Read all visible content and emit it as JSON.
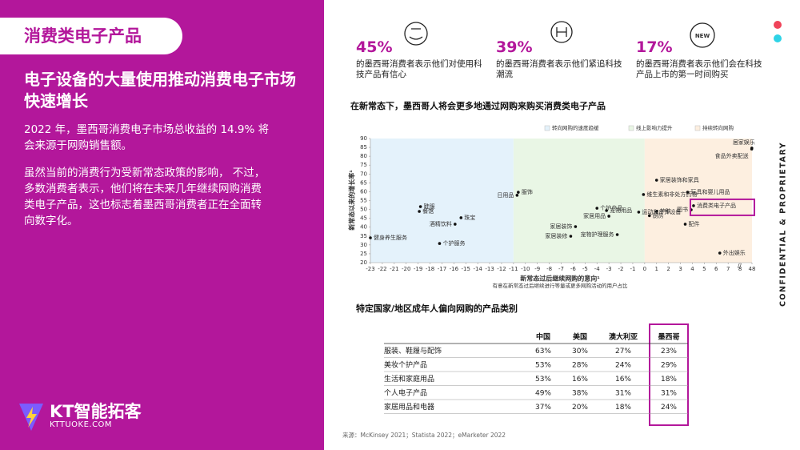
{
  "left": {
    "tag": "消费类电子产品",
    "heading": "电子设备的大量使用推动消费电子市场快速增长",
    "paragraphs": [
      "2022 年，墨西哥消费电子市场总收益的 14.9% 将会来源于网购销售额。",
      "虽然当前的消费行为受新常态政策的影响， 不过，多数消费者表示，他们将在未来几年继续网购消费类电子产品，这也标志着墨西哥消费者正在全面转向数字化。"
    ],
    "logo": {
      "name": "KT智能拓客",
      "url": "KTTUOKE.COM"
    }
  },
  "stats": [
    {
      "value": "45%",
      "text": "的墨西哥消费者表示他们对使用科技产品有信心"
    },
    {
      "value": "39%",
      "text": "的墨西哥消费者表示他们紧追科技潮流"
    },
    {
      "value": "17%",
      "text": "的墨西哥消费者表示他们会在科技产品上市的第一时间购买"
    }
  ],
  "chart_data": {
    "type": "scatter",
    "title": "在新常态下，墨西哥人将会更多地通过网购来购买消费类电子产品",
    "y_label": "新常态以来的增长率¹",
    "x_label": "新常态过后继续网购的意向¹",
    "x_sublabel": "有意在新常态过后继续进行等量或更多网购活动的用户占比",
    "zones": [
      {
        "label": "转向网购的速度趋缓",
        "from": -23,
        "to": -11,
        "color": "#e4f2fb"
      },
      {
        "label": "线上影响力提升",
        "from": -11,
        "to": 0,
        "color": "#e9f6e5"
      },
      {
        "label": "持续转向网购",
        "from": 0,
        "to": 48,
        "color": "#fdefe0"
      }
    ],
    "labels": [
      "健身养生服务",
      "鞋服",
      "餐馆",
      "酒精饮料",
      "珠宝",
      "个护服务",
      "服饰",
      "日用品",
      "个护产品",
      "宠物用品",
      "家居装饰",
      "家居装修",
      "家居装饰和家具",
      "维生素和非处方药物",
      "家居用品",
      "护肤",
      "运动和户外设备",
      "厨房",
      "宠物护理服务",
      "玩具和婴儿用品",
      "图书",
      "消费类电子产品",
      "配件",
      "外出娱乐",
      "居家娱乐",
      "食品外卖配送"
    ],
    "x": [
      -23,
      -18.8,
      -18.9,
      -15.9,
      -15.4,
      -17.2,
      -10.6,
      -10.7,
      -4.0,
      -3.2,
      -5.8,
      -6.2,
      1.0,
      -0.1,
      -3.0,
      1.0,
      -0.5,
      0.4,
      -2.3,
      3.6,
      3.9,
      4.1,
      3.4,
      6.3,
      47.5,
      47
    ],
    "values": [
      34,
      51.6,
      48.9,
      41.7,
      45.3,
      30.8,
      59.7,
      58,
      50.7,
      49.4,
      40.3,
      34.9,
      66.5,
      58.4,
      46.2,
      48.9,
      48.5,
      46.5,
      35.8,
      59.7,
      49.8,
      52.1,
      41.7,
      25.4,
      84.6,
      84.1
    ],
    "color": "#111111",
    "xlim": [
      -23,
      48
    ],
    "ylim": [
      20,
      90
    ],
    "xticks": [
      -23,
      -22,
      -21,
      -20,
      -19,
      -18,
      -17,
      -16,
      -15,
      -14,
      -13,
      -12,
      -11,
      -10,
      -9,
      -8,
      -7,
      -6,
      -5,
      -4,
      -3,
      -2,
      -1,
      0,
      1,
      2,
      3,
      4,
      5,
      6,
      7,
      8,
      48
    ],
    "yticks": [
      20,
      25,
      30,
      35,
      40,
      45,
      50,
      55,
      60,
      65,
      70,
      75,
      80,
      85,
      90
    ]
  },
  "table": {
    "title": "特定国家/地区成年人偏向网购的产品类别",
    "header": [
      "中国",
      "美国",
      "澳大利亚",
      "墨西哥"
    ],
    "rows": [
      [
        "服装、鞋履与配饰",
        "63%",
        "30%",
        "27%",
        "23%"
      ],
      [
        "美妆个护产品",
        "53%",
        "28%",
        "24%",
        "29%"
      ],
      [
        "生活和家庭用品",
        "53%",
        "16%",
        "16%",
        "18%"
      ],
      [
        "个人电子产品",
        "49%",
        "38%",
        "31%",
        "31%"
      ],
      [
        "家居用品和电器",
        "37%",
        "20%",
        "18%",
        "24%"
      ]
    ]
  },
  "source": "来源：McKinsey 2021；Statista 2022；eMarketer 2022",
  "side_note": "CONFIDENTIAL & PROPRIETARY"
}
